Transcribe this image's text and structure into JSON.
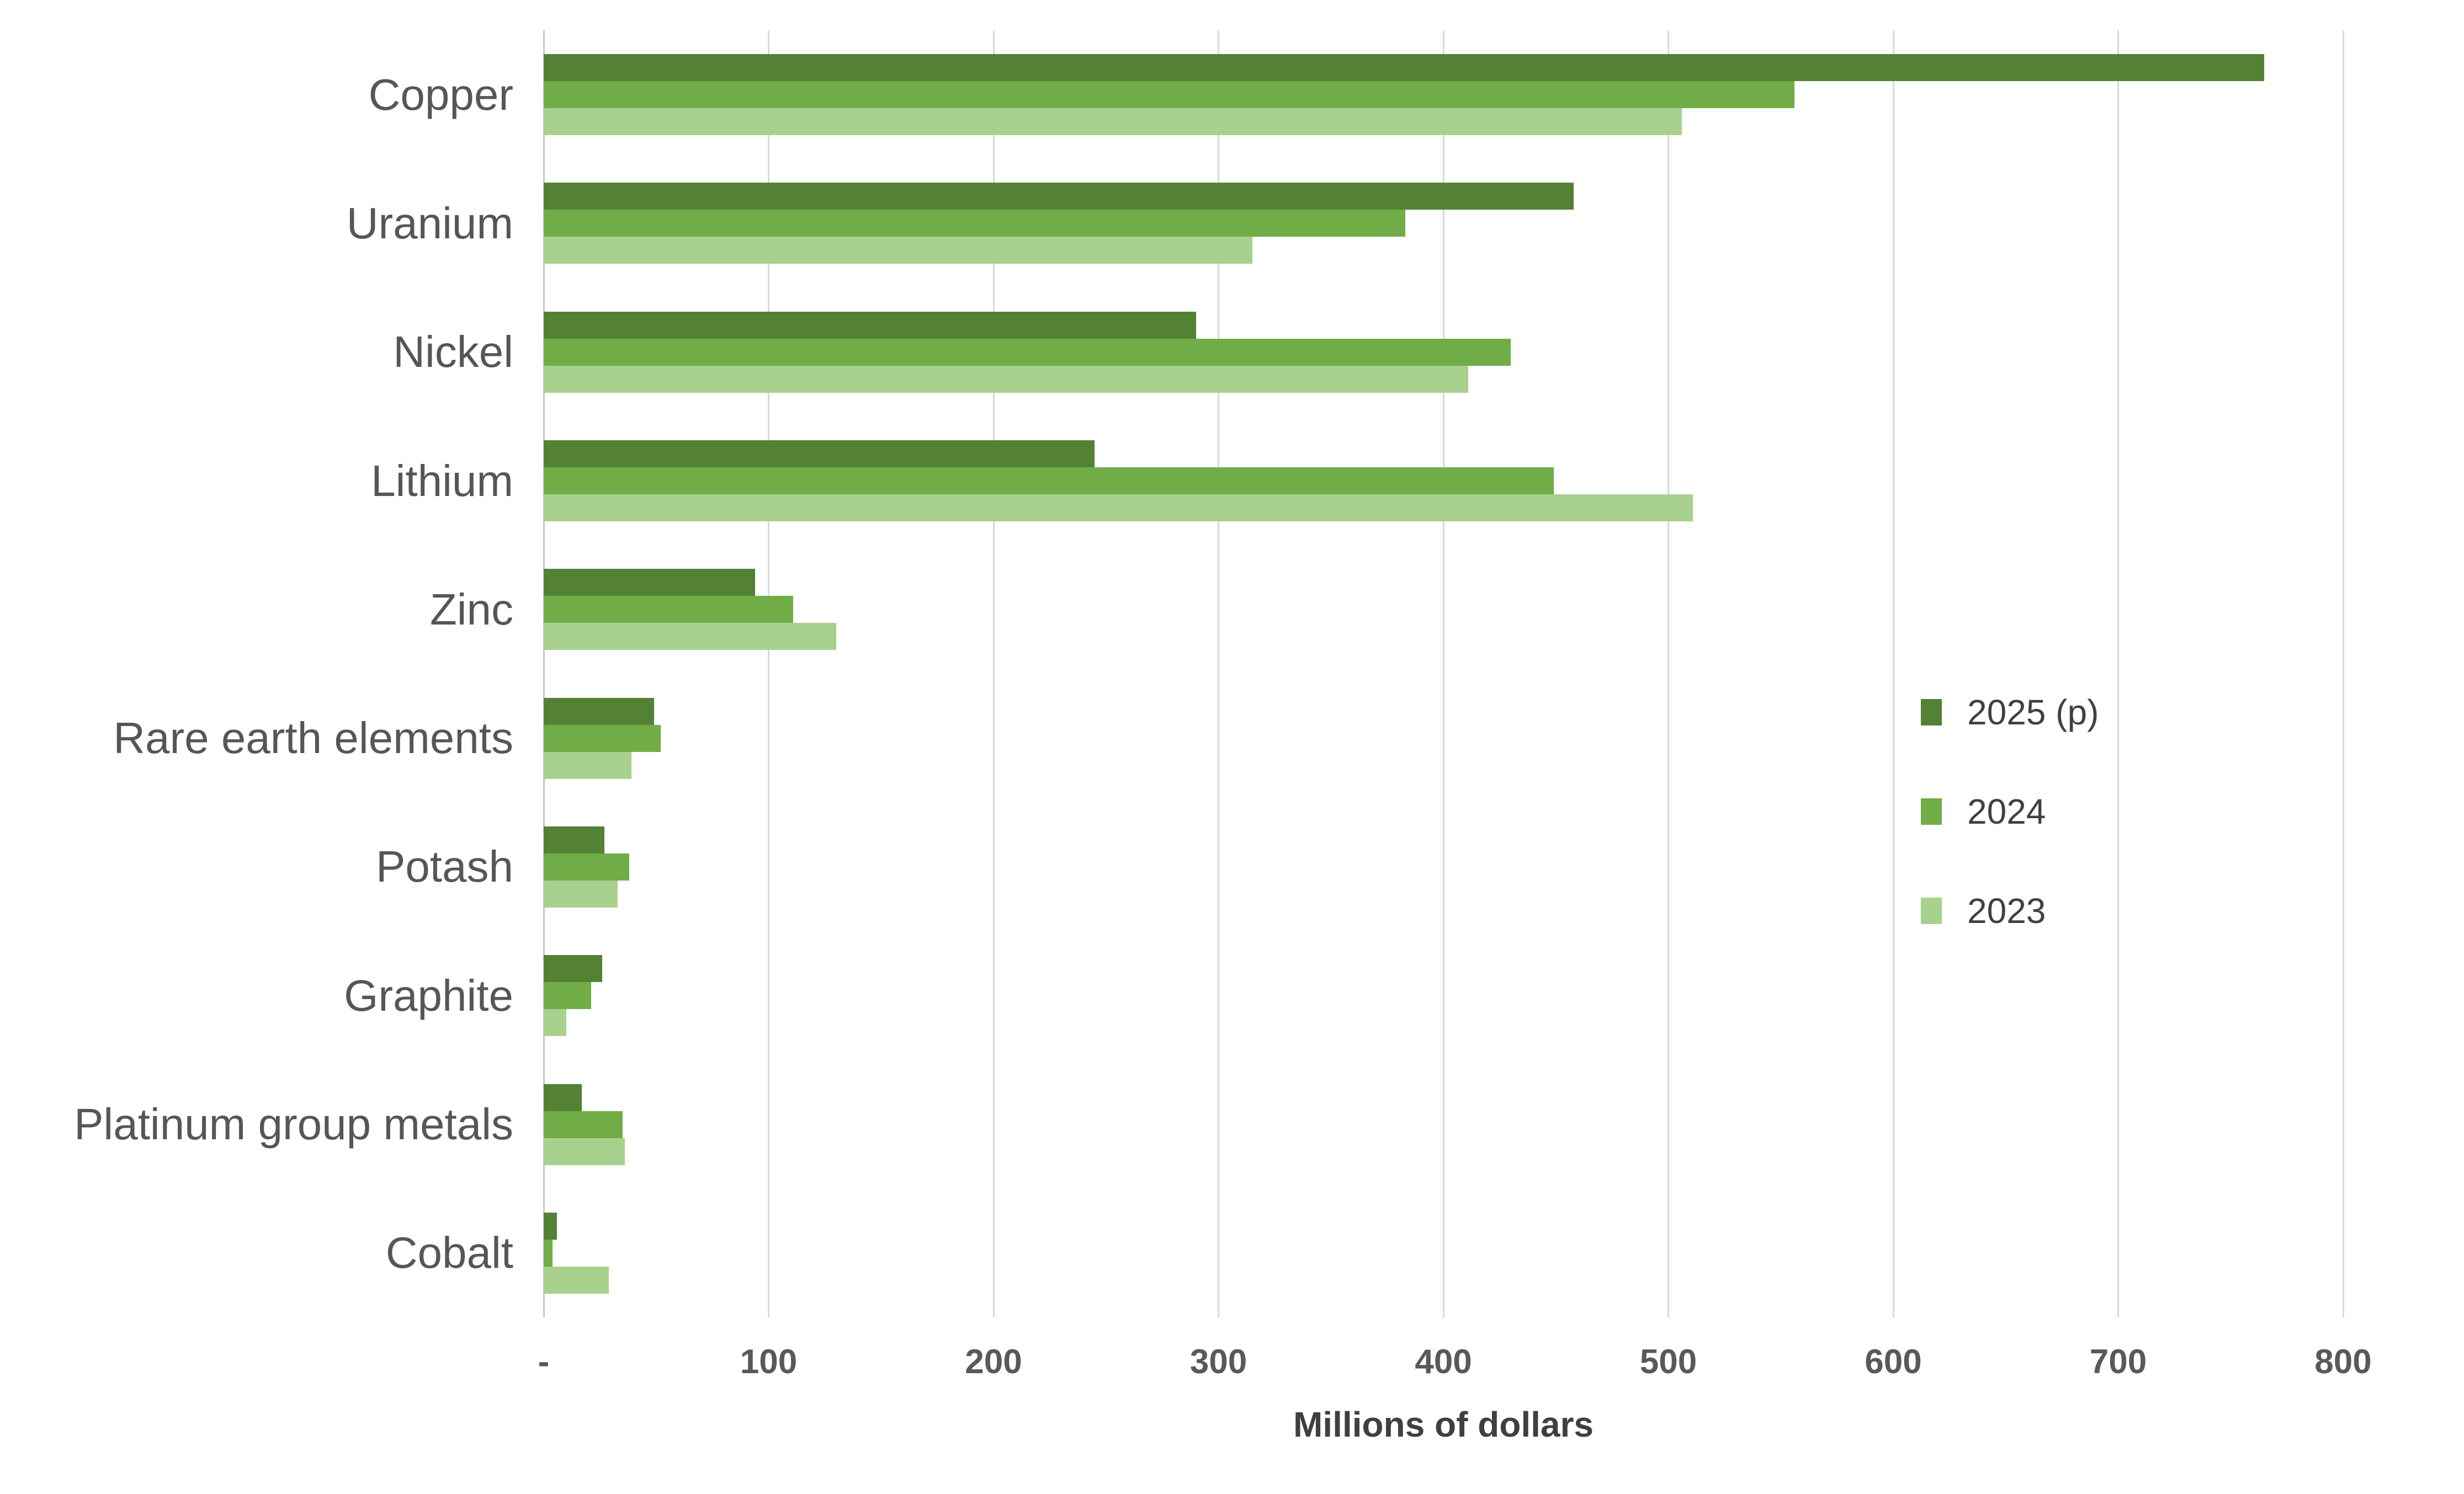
{
  "chart_data": {
    "type": "bar",
    "orientation": "horizontal",
    "title": "",
    "xlabel": "Millions of dollars",
    "ylabel": "",
    "xlim": [
      0,
      800
    ],
    "xticks": [
      0,
      100,
      200,
      300,
      400,
      500,
      600,
      700,
      800
    ],
    "xtick_labels": [
      "-",
      "100",
      "200",
      "300",
      "400",
      "500",
      "600",
      "700",
      "800"
    ],
    "grid": "vertical",
    "legend_position": "center-right",
    "categories": [
      "Copper",
      "Uranium",
      "Nickel",
      "Lithium",
      "Zinc",
      "Rare earth elements",
      "Potash",
      "Graphite",
      "Platinum group metals",
      "Cobalt"
    ],
    "series": [
      {
        "name": "2025 (p)",
        "color": "#548235",
        "values": [
          765,
          458,
          290,
          245,
          94,
          49,
          27,
          26,
          17,
          6
        ]
      },
      {
        "name": "2024",
        "color": "#70AD47",
        "values": [
          556,
          383,
          430,
          449,
          111,
          52,
          38,
          21,
          35,
          4
        ]
      },
      {
        "name": "2023",
        "color": "#A9D18E",
        "values": [
          506,
          315,
          411,
          511,
          130,
          39,
          33,
          10,
          36,
          29
        ]
      }
    ]
  },
  "colors": {
    "background": "#FFFFFF",
    "gridline": "#D9D9D9",
    "zero_line": "#C9C9C9",
    "tick_text": "#595959",
    "category_text": "#565656",
    "axis_title_text": "#3F3F3F",
    "legend_text": "#404040"
  }
}
